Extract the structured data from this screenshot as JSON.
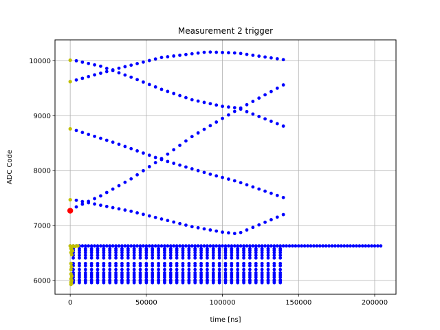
{
  "chart_data": {
    "type": "scatter",
    "title": "Measurement 2 trigger",
    "xlabel": "time [ns]",
    "ylabel": "ADC Code",
    "xlim": [
      -10000,
      214000
    ],
    "ylim": [
      5750,
      10380
    ],
    "xticks": [
      0,
      50000,
      100000,
      150000,
      200000
    ],
    "xtick_labels": [
      "0",
      "50000",
      "100000",
      "150000",
      "200000"
    ],
    "yticks": [
      6000,
      7000,
      8000,
      9000,
      10000
    ],
    "ytick_labels": [
      "6000",
      "7000",
      "8000",
      "9000",
      "10000"
    ],
    "grid": true,
    "colors": {
      "main": "#0000ff",
      "start": "#bfbf00",
      "trigger": "#ff0000",
      "grid": "#b0b0b0"
    },
    "series": [
      {
        "role": "long-baseline",
        "color": "#0000ff",
        "x_start": 0,
        "x_end": 204000,
        "x_step": 2000,
        "y": 6630
      },
      {
        "role": "baseline-bands",
        "color": "#0000ff",
        "x_start": 2000,
        "x_end": 140000,
        "x_step": 4000,
        "levels": [
          6580,
          6550,
          6510,
          6460,
          6410,
          6310,
          6270,
          6200,
          6140,
          6100,
          6060,
          6010,
          5990,
          5960
        ]
      },
      {
        "role": "oscillation-curves",
        "color": "#0000ff",
        "x_start": 4000,
        "x_end": 140000,
        "x_step": 4000,
        "curves": [
          {
            "x": [
              4000,
              30000,
              60000,
              90000,
              110000,
              140000
            ],
            "y": [
              9650,
              9850,
              10060,
              10160,
              10140,
              10020
            ]
          },
          {
            "x": [
              4000,
              20000,
              40000,
              60000,
              80000,
              100000,
              110000,
              140000
            ],
            "y": [
              10000,
              9900,
              9700,
              9480,
              9290,
              9170,
              9140,
              8810
            ]
          },
          {
            "x": [
              4000,
              30000,
              60000,
              90000,
              110000,
              140000
            ],
            "y": [
              8730,
              8500,
              8200,
              7950,
              7800,
              7510
            ]
          },
          {
            "x": [
              4000,
              20000,
              40000,
              60000,
              80000,
              100000,
              110000,
              140000
            ],
            "y": [
              7340,
              7540,
              7850,
              8220,
              8620,
              8950,
              9110,
              9560
            ]
          },
          {
            "x": [
              4000,
              20000,
              40000,
              60000,
              80000,
              100000,
              110000,
              140000
            ],
            "y": [
              7460,
              7370,
              7260,
              7120,
              6980,
              6880,
              6850,
              7200
            ]
          }
        ]
      },
      {
        "role": "start-points",
        "color": "#bfbf00",
        "points": [
          [
            0,
            10010
          ],
          [
            0,
            9620
          ],
          [
            0,
            8760
          ],
          [
            0,
            7470
          ],
          [
            0,
            6630
          ],
          [
            500,
            6620
          ],
          [
            1000,
            6610
          ],
          [
            2000,
            6630
          ],
          [
            3000,
            6620
          ],
          [
            4000,
            6630
          ],
          [
            5000,
            6630
          ],
          [
            500,
            6580
          ],
          [
            1000,
            6560
          ],
          [
            1500,
            6540
          ],
          [
            500,
            6510
          ],
          [
            1000,
            6470
          ],
          [
            500,
            6310
          ],
          [
            800,
            6250
          ],
          [
            500,
            6200
          ],
          [
            500,
            6120
          ],
          [
            1000,
            6080
          ],
          [
            500,
            6030
          ],
          [
            1000,
            6000
          ],
          [
            500,
            5970
          ],
          [
            800,
            5950
          ],
          [
            500,
            5930
          ]
        ]
      },
      {
        "role": "trigger",
        "color": "#ff0000",
        "points": [
          [
            0,
            7270
          ]
        ]
      }
    ]
  }
}
